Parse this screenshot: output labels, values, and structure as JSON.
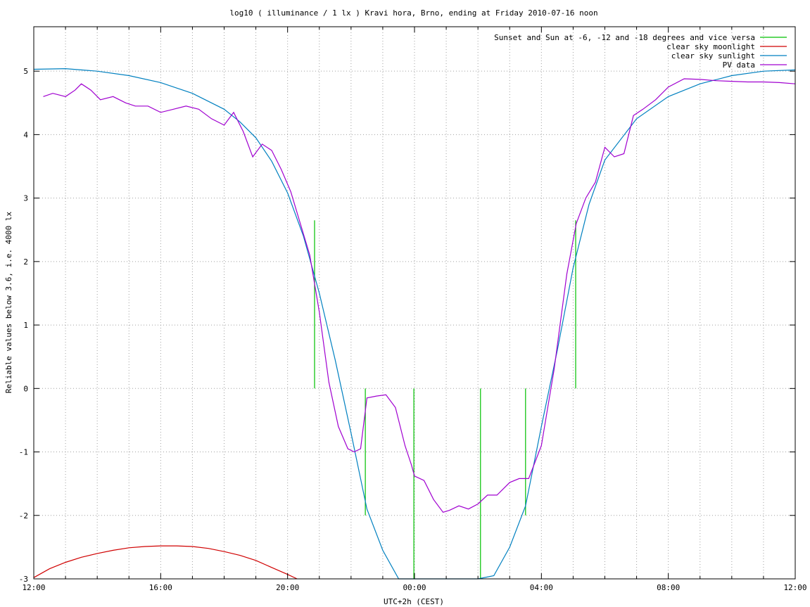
{
  "chart_data": {
    "type": "line",
    "title": "log10 ( illuminance / 1 lx ) Kravi hora, Brno, ending at Friday 2010-07-16 noon",
    "xlabel": "UTC+2h (CEST)",
    "ylabel": "Reliable values below 3.6, i.e. 4000 lx",
    "xlim": [
      12,
      36
    ],
    "ylim": [
      -3,
      5.7
    ],
    "x_ticks": [
      {
        "value": 12,
        "label": "12:00"
      },
      {
        "value": 16,
        "label": "16:00"
      },
      {
        "value": 20,
        "label": "20:00"
      },
      {
        "value": 24,
        "label": "00:00"
      },
      {
        "value": 28,
        "label": "04:00"
      },
      {
        "value": 32,
        "label": "08:00"
      },
      {
        "value": 36,
        "label": "12:00"
      }
    ],
    "y_ticks": [
      {
        "value": 5,
        "label": "5"
      },
      {
        "value": 4,
        "label": "4"
      },
      {
        "value": 3,
        "label": "3"
      },
      {
        "value": 2,
        "label": "2"
      },
      {
        "value": 1,
        "label": "1"
      },
      {
        "value": 0,
        "label": "0"
      },
      {
        "value": -1,
        "label": "-1"
      },
      {
        "value": -2,
        "label": "-2"
      },
      {
        "value": -3,
        "label": "-3"
      }
    ],
    "minor_x_step": 1,
    "grid": true,
    "legend_position": "top-right",
    "series": [
      {
        "name": "Sunset and Sun at -6, -12 and -18 degrees and vice versa",
        "color": "#00c000",
        "style": "vertical-markers",
        "markers": [
          {
            "x": 20.85,
            "y0": 0,
            "y1": 2.65
          },
          {
            "x": 22.45,
            "y0": -2.0,
            "y1": 0
          },
          {
            "x": 23.98,
            "y0": -3.0,
            "y1": 0
          },
          {
            "x": 26.08,
            "y0": -3.0,
            "y1": 0
          },
          {
            "x": 27.5,
            "y0": -2.0,
            "y1": 0
          },
          {
            "x": 29.08,
            "y0": 0,
            "y1": 2.65
          }
        ]
      },
      {
        "name": "clear sky moonlight",
        "color": "#d00000",
        "x": [
          12.0,
          12.5,
          13.0,
          13.5,
          14.0,
          14.5,
          15.0,
          15.5,
          16.0,
          16.5,
          17.0,
          17.5,
          18.0,
          18.5,
          19.0,
          19.5,
          20.0,
          20.3
        ],
        "y": [
          -2.98,
          -2.84,
          -2.74,
          -2.66,
          -2.6,
          -2.55,
          -2.51,
          -2.49,
          -2.48,
          -2.48,
          -2.49,
          -2.52,
          -2.57,
          -2.63,
          -2.71,
          -2.82,
          -2.93,
          -3.0
        ]
      },
      {
        "name": "clear sky sunlight",
        "color": "#0080c0",
        "x": [
          12.0,
          13.0,
          14.0,
          15.0,
          16.0,
          17.0,
          18.0,
          18.5,
          19.0,
          19.5,
          20.0,
          20.5,
          21.0,
          21.5,
          22.0,
          22.5,
          23.0,
          23.5,
          24.0,
          24.5,
          25.0,
          25.5,
          26.0,
          26.5,
          27.0,
          27.5,
          28.0,
          28.5,
          29.0,
          29.5,
          30.0,
          31.0,
          32.0,
          33.0,
          34.0,
          35.0,
          36.0
        ],
        "y": [
          5.03,
          5.04,
          5.0,
          4.93,
          4.82,
          4.65,
          4.4,
          4.2,
          3.95,
          3.58,
          3.08,
          2.4,
          1.5,
          0.45,
          -0.7,
          -1.9,
          -2.55,
          -3.0,
          -3.0,
          -3.0,
          -3.0,
          -3.0,
          -3.0,
          -2.95,
          -2.5,
          -1.85,
          -0.6,
          0.6,
          1.9,
          2.9,
          3.6,
          4.25,
          4.6,
          4.8,
          4.93,
          5.0,
          5.02
        ]
      },
      {
        "name": "PV data",
        "color": "#a000d0",
        "x": [
          12.3,
          12.6,
          13.0,
          13.3,
          13.5,
          13.8,
          14.1,
          14.5,
          14.9,
          15.2,
          15.6,
          16.0,
          16.4,
          16.8,
          17.2,
          17.6,
          18.0,
          18.3,
          18.6,
          18.9,
          19.2,
          19.5,
          19.8,
          20.1,
          20.4,
          20.7,
          21.0,
          21.3,
          21.6,
          21.9,
          22.1,
          22.3,
          22.5,
          22.8,
          23.1,
          23.4,
          23.7,
          23.9,
          24.0,
          24.3,
          24.6,
          24.9,
          25.1,
          25.4,
          25.7,
          26.0,
          26.3,
          26.6,
          27.0,
          27.3,
          27.6,
          28.0,
          28.4,
          28.8,
          29.1,
          29.4,
          29.7,
          30.0,
          30.3,
          30.6,
          30.9,
          31.2,
          31.6,
          32.0,
          32.5,
          33.0,
          33.5,
          34.0,
          34.5,
          35.0,
          35.5,
          36.0
        ],
        "y": [
          4.6,
          4.65,
          4.6,
          4.7,
          4.8,
          4.7,
          4.55,
          4.6,
          4.5,
          4.45,
          4.45,
          4.35,
          4.4,
          4.45,
          4.4,
          4.25,
          4.15,
          4.35,
          4.05,
          3.65,
          3.85,
          3.75,
          3.45,
          3.1,
          2.6,
          2.1,
          1.2,
          0.1,
          -0.6,
          -0.95,
          -1.0,
          -0.95,
          -0.15,
          -0.12,
          -0.1,
          -0.3,
          -0.9,
          -1.2,
          -1.38,
          -1.45,
          -1.75,
          -1.95,
          -1.92,
          -1.85,
          -1.9,
          -1.82,
          -1.68,
          -1.68,
          -1.48,
          -1.42,
          -1.42,
          -0.9,
          0.3,
          1.8,
          2.6,
          3.0,
          3.25,
          3.8,
          3.65,
          3.7,
          4.3,
          4.4,
          4.55,
          4.75,
          4.88,
          4.87,
          4.85,
          4.84,
          4.83,
          4.83,
          4.82,
          4.8
        ]
      }
    ]
  }
}
